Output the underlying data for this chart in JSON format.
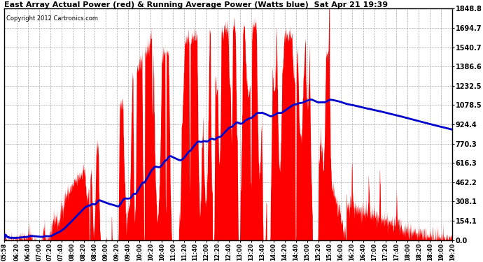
{
  "title": "East Array Actual Power (red) & Running Average Power (Watts blue)  Sat Apr 21 19:39",
  "copyright": "Copyright 2012 Cartronics.com",
  "ytick_values": [
    0.0,
    154.1,
    308.1,
    462.2,
    616.3,
    770.3,
    924.4,
    1078.5,
    1232.5,
    1386.6,
    1540.7,
    1694.7,
    1848.8
  ],
  "ytick_labels": [
    "0.0",
    "154.1",
    "308.1",
    "462.2",
    "616.3",
    "770.3",
    "924.4",
    "1078.5",
    "1232.5",
    "1386.6",
    "1540.7",
    "1694.7",
    "1848.8"
  ],
  "ymax": 1848.8,
  "ymin": 0.0,
  "background_color": "#ffffff",
  "grid_color": "#aaaaaa",
  "actual_color": "#ff0000",
  "average_color": "#0000cc",
  "xtick_labels": [
    "05:58",
    "06:20",
    "06:40",
    "07:00",
    "07:20",
    "07:40",
    "08:00",
    "08:20",
    "08:40",
    "09:00",
    "09:20",
    "09:40",
    "10:00",
    "10:20",
    "10:40",
    "11:00",
    "11:20",
    "11:40",
    "12:00",
    "12:20",
    "12:40",
    "13:00",
    "13:20",
    "13:40",
    "14:00",
    "14:20",
    "14:40",
    "15:00",
    "15:20",
    "15:40",
    "16:00",
    "16:20",
    "16:40",
    "17:00",
    "17:20",
    "17:40",
    "18:00",
    "18:20",
    "18:40",
    "19:00",
    "19:20"
  ]
}
